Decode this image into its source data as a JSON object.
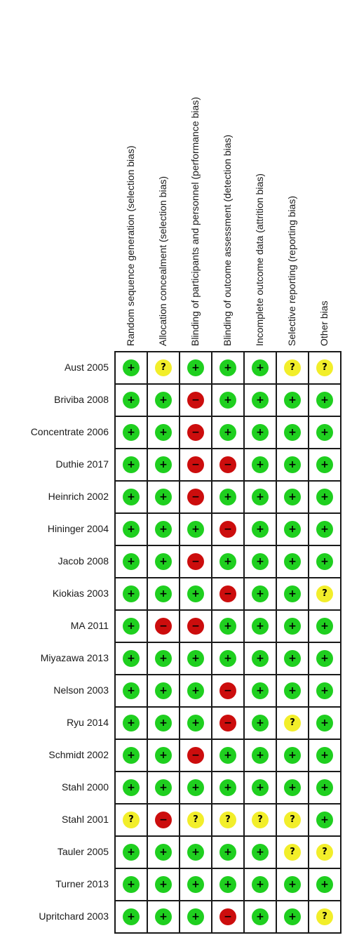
{
  "columns": [
    "Random sequence generation (selection bias)",
    "Allocation concealment (selection bias)",
    "Blinding of participants and personnel (performance bias)",
    "Blinding of outcome assessment (detection bias)",
    "Incomplete outcome data (attrition bias)",
    "Selective reporting (reporting bias)",
    "Other bias"
  ],
  "symbols": {
    "low": "+",
    "high": "−",
    "unclear": "?"
  },
  "colors": {
    "low": "#1fcf1f",
    "high": "#cc0d0d",
    "unclear": "#f2ee2a"
  },
  "studies": [
    {
      "name": "Aust 2005",
      "ratings": [
        "low",
        "unclear",
        "low",
        "low",
        "low",
        "unclear",
        "unclear"
      ]
    },
    {
      "name": "Briviba 2008",
      "ratings": [
        "low",
        "low",
        "high",
        "low",
        "low",
        "low",
        "low"
      ]
    },
    {
      "name": "Concentrate 2006",
      "ratings": [
        "low",
        "low",
        "high",
        "low",
        "low",
        "low",
        "low"
      ]
    },
    {
      "name": "Duthie 2017",
      "ratings": [
        "low",
        "low",
        "high",
        "high",
        "low",
        "low",
        "low"
      ]
    },
    {
      "name": "Heinrich 2002",
      "ratings": [
        "low",
        "low",
        "high",
        "low",
        "low",
        "low",
        "low"
      ]
    },
    {
      "name": "Hininger 2004",
      "ratings": [
        "low",
        "low",
        "low",
        "high",
        "low",
        "low",
        "low"
      ]
    },
    {
      "name": "Jacob 2008",
      "ratings": [
        "low",
        "low",
        "high",
        "low",
        "low",
        "low",
        "low"
      ]
    },
    {
      "name": "Kiokias 2003",
      "ratings": [
        "low",
        "low",
        "low",
        "high",
        "low",
        "low",
        "unclear"
      ]
    },
    {
      "name": "MA 2011",
      "ratings": [
        "low",
        "high",
        "high",
        "low",
        "low",
        "low",
        "low"
      ]
    },
    {
      "name": "Miyazawa 2013",
      "ratings": [
        "low",
        "low",
        "low",
        "low",
        "low",
        "low",
        "low"
      ]
    },
    {
      "name": "Nelson 2003",
      "ratings": [
        "low",
        "low",
        "low",
        "high",
        "low",
        "low",
        "low"
      ]
    },
    {
      "name": "Ryu 2014",
      "ratings": [
        "low",
        "low",
        "low",
        "high",
        "low",
        "unclear",
        "low"
      ]
    },
    {
      "name": "Schmidt  2002",
      "ratings": [
        "low",
        "low",
        "high",
        "low",
        "low",
        "low",
        "low"
      ]
    },
    {
      "name": "Stahl 2000",
      "ratings": [
        "low",
        "low",
        "low",
        "low",
        "low",
        "low",
        "low"
      ]
    },
    {
      "name": "Stahl 2001",
      "ratings": [
        "unclear",
        "high",
        "unclear",
        "unclear",
        "unclear",
        "unclear",
        "low"
      ]
    },
    {
      "name": "Tauler 2005",
      "ratings": [
        "low",
        "low",
        "low",
        "low",
        "low",
        "unclear",
        "unclear"
      ]
    },
    {
      "name": "Turner 2013",
      "ratings": [
        "low",
        "low",
        "low",
        "low",
        "low",
        "low",
        "low"
      ]
    },
    {
      "name": "Upritchard 2003",
      "ratings": [
        "low",
        "low",
        "low",
        "high",
        "low",
        "low",
        "unclear"
      ]
    }
  ]
}
